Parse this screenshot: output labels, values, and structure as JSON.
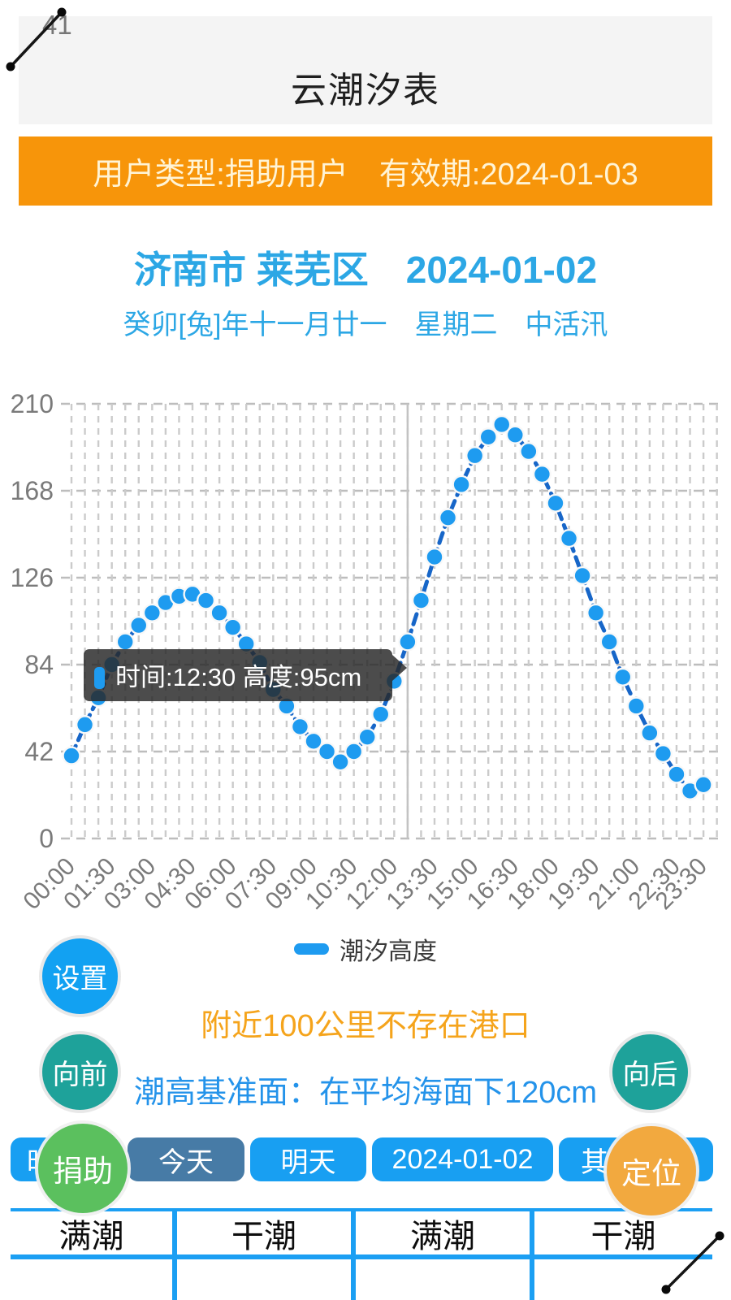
{
  "annotation": {
    "top_left_number": "41"
  },
  "titlebar": {
    "title": "云潮汐表"
  },
  "banner": {
    "text": "用户类型:捐助用户　有效期:2024-01-03"
  },
  "location": {
    "heading": "济南市 莱芜区　2024-01-02",
    "lunar_line": "癸卯[兔]年十一月廿一　星期二　中活汛"
  },
  "chart_data": {
    "type": "line",
    "title": "",
    "xlabel": "",
    "ylabel": "",
    "unit": "cm",
    "ylim": [
      0,
      210
    ],
    "yticks": [
      0,
      42,
      84,
      126,
      168,
      210
    ],
    "grid": true,
    "legend_position": "bottom",
    "series_name": "潮汐高度",
    "x": [
      "00:00",
      "00:30",
      "01:00",
      "01:30",
      "02:00",
      "02:30",
      "03:00",
      "03:30",
      "04:00",
      "04:30",
      "05:00",
      "05:30",
      "06:00",
      "06:30",
      "07:00",
      "07:30",
      "08:00",
      "08:30",
      "09:00",
      "09:30",
      "10:00",
      "10:30",
      "11:00",
      "11:30",
      "12:00",
      "12:30",
      "13:00",
      "13:30",
      "14:00",
      "14:30",
      "15:00",
      "15:30",
      "16:00",
      "16:30",
      "17:00",
      "17:30",
      "18:00",
      "18:30",
      "19:00",
      "19:30",
      "20:00",
      "20:30",
      "21:00",
      "21:30",
      "22:00",
      "22:30",
      "23:00",
      "23:30"
    ],
    "values": [
      40,
      55,
      68,
      84,
      95,
      103,
      109,
      114,
      117,
      118,
      115,
      109,
      102,
      94,
      85,
      72,
      64,
      54,
      47,
      42,
      37,
      42,
      49,
      60,
      76,
      95,
      115,
      136,
      155,
      171,
      185,
      194,
      200,
      195,
      187,
      176,
      162,
      145,
      127,
      109,
      95,
      78,
      64,
      51,
      41,
      31,
      23,
      26
    ],
    "shown_tick_indices": [
      0,
      3,
      6,
      9,
      12,
      15,
      18,
      21,
      24,
      27,
      30,
      33,
      36,
      39,
      42,
      45,
      47
    ],
    "selected_index": 25
  },
  "tooltip": {
    "text": "时间:12:30 高度:95cm",
    "time": "12:30",
    "height_cm": 95
  },
  "legend": {
    "label": "潮汐高度"
  },
  "buttons": {
    "settings": "设置",
    "prev": "向前",
    "next": "向后",
    "donate": "捐助",
    "locate": "定位"
  },
  "notice": "附近100公里不存在港口",
  "datum": "潮高基准面：在平均海面下120cm",
  "tabs": [
    {
      "label": "昨天",
      "selected": false
    },
    {
      "label": "今天",
      "selected": true
    },
    {
      "label": "明天",
      "selected": false
    },
    {
      "label": "2024-01-02",
      "selected": false
    },
    {
      "label": "其他位置",
      "selected": false
    }
  ],
  "tide_table": {
    "headers": [
      "满潮",
      "干潮",
      "满潮",
      "干潮"
    ]
  },
  "colors": {
    "banner_bg": "#F7950A",
    "heading_blue": "#2CA7E5",
    "line": "#1766C8",
    "point": "#1E9BF0",
    "grid": "#c8c8c8",
    "axis_text": "#7a7a7a",
    "tooltip_bg": "rgba(40,40,40,0.83)",
    "table_border": "#1B9FF3",
    "notice_orange": "#F5A41C",
    "datum_blue": "#2493EA"
  }
}
